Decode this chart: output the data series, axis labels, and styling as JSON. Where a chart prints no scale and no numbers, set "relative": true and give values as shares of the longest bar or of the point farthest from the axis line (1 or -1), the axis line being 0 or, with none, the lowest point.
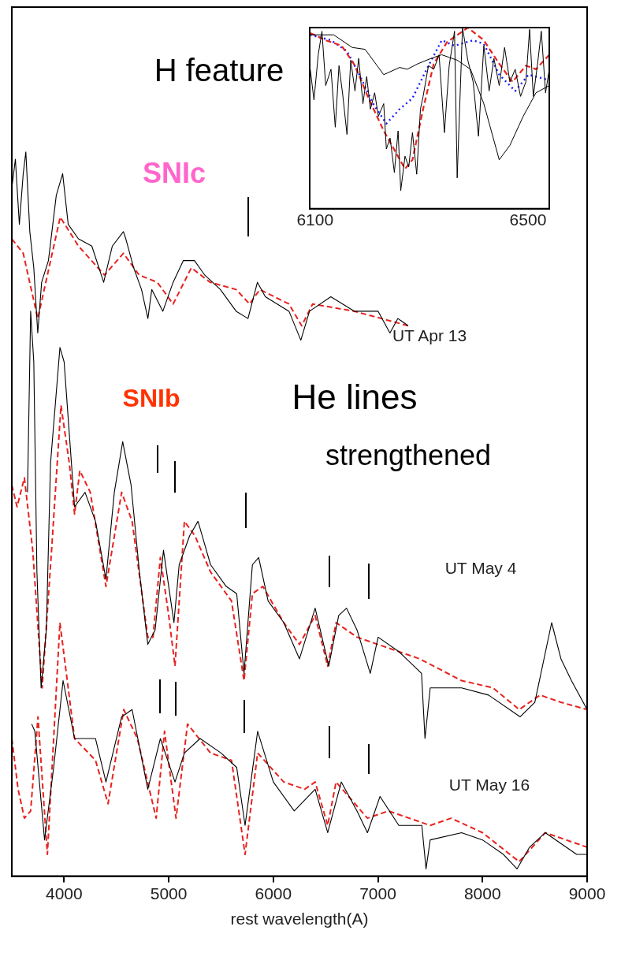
{
  "chart_data": [
    {
      "type": "line",
      "xlabel": "rest wavelength(A)",
      "xlim": [
        3500,
        9000
      ],
      "xticks": [
        4000,
        5000,
        6000,
        7000,
        8000,
        9000
      ],
      "relative": true,
      "series": [
        {
          "color": "#000000",
          "x": [
            3500,
            3534,
            3572,
            3609,
            3634,
            3672,
            3710,
            3748,
            3785,
            3850,
            3925,
            3986,
            4039,
            4137,
            4265,
            4378,
            4461,
            4567,
            4590,
            4665,
            4740,
            4801,
            4838,
            4944,
            5042,
            5140,
            5246,
            5344,
            5494,
            5645,
            5758,
            5848,
            5924,
            6150,
            6263,
            6346,
            6550,
            6776,
            7002,
            7115,
            7191,
            7289
          ],
          "values": [
            0.95,
            0.99,
            0.9,
            0.97,
            1.0,
            0.89,
            0.84,
            0.75,
            0.82,
            0.85,
            0.94,
            0.97,
            0.9,
            0.88,
            0.87,
            0.82,
            0.87,
            0.89,
            0.88,
            0.84,
            0.81,
            0.77,
            0.81,
            0.78,
            0.82,
            0.85,
            0.85,
            0.83,
            0.81,
            0.78,
            0.77,
            0.82,
            0.8,
            0.78,
            0.74,
            0.78,
            0.8,
            0.78,
            0.78,
            0.75,
            0.77,
            0.76
          ],
          "line_style": "solid"
        },
        {
          "color": "#e8231f",
          "x": [
            3500,
            3609,
            3748,
            3963,
            4137,
            4386,
            4567,
            4717,
            4891,
            5042,
            5216,
            5396,
            5645,
            5773,
            5871,
            6150,
            6271,
            6376,
            6776,
            7289
          ],
          "values": [
            0.88,
            0.86,
            0.77,
            0.91,
            0.87,
            0.83,
            0.86,
            0.83,
            0.82,
            0.79,
            0.84,
            0.82,
            0.81,
            0.79,
            0.81,
            0.79,
            0.76,
            0.79,
            0.78,
            0.76
          ],
          "line_style": "dashed"
        },
        {
          "color": "#000000",
          "x": [
            3650,
            3680,
            3710,
            3740,
            3780,
            3830,
            3870,
            3960,
            4000,
            4050,
            4100,
            4200,
            4300,
            4400,
            4480,
            4560,
            4640,
            4720,
            4800,
            4870,
            4950,
            5000,
            5050,
            5100,
            5200,
            5280,
            5400,
            5550,
            5650,
            5720,
            5800,
            5860,
            5950,
            6100,
            6250,
            6400,
            6530,
            6625,
            6700,
            6800,
            6927,
            7002,
            7200,
            7417,
            7450,
            7500,
            7800,
            8058,
            8360,
            8500,
            8661,
            8750,
            8850,
            9000
          ],
          "values": [
            0.53,
            0.78,
            0.71,
            0.42,
            0.26,
            0.34,
            0.57,
            0.73,
            0.71,
            0.61,
            0.51,
            0.53,
            0.49,
            0.41,
            0.53,
            0.6,
            0.54,
            0.42,
            0.32,
            0.34,
            0.45,
            0.4,
            0.35,
            0.43,
            0.47,
            0.49,
            0.43,
            0.4,
            0.39,
            0.28,
            0.43,
            0.44,
            0.38,
            0.35,
            0.3,
            0.37,
            0.29,
            0.36,
            0.37,
            0.34,
            0.28,
            0.33,
            0.31,
            0.28,
            0.19,
            0.26,
            0.26,
            0.25,
            0.22,
            0.24,
            0.35,
            0.3,
            0.27,
            0.23
          ],
          "line_style": "solid"
        },
        {
          "color": "#e8231f",
          "x": [
            3500,
            3550,
            3620,
            3700,
            3790,
            3880,
            3970,
            4050,
            4100,
            4150,
            4250,
            4400,
            4550,
            4650,
            4800,
            4850,
            4920,
            5000,
            5060,
            5150,
            5250,
            5400,
            5600,
            5720,
            5800,
            5900,
            6100,
            6250,
            6400,
            6520,
            6600,
            6800,
            7000,
            7400,
            7800,
            8100,
            8350,
            8550,
            8750,
            9000
          ],
          "values": [
            0.54,
            0.51,
            0.55,
            0.45,
            0.26,
            0.45,
            0.65,
            0.57,
            0.5,
            0.56,
            0.53,
            0.4,
            0.53,
            0.49,
            0.33,
            0.33,
            0.44,
            0.36,
            0.29,
            0.49,
            0.47,
            0.42,
            0.38,
            0.27,
            0.39,
            0.4,
            0.35,
            0.32,
            0.36,
            0.29,
            0.35,
            0.33,
            0.32,
            0.3,
            0.27,
            0.26,
            0.23,
            0.25,
            0.24,
            0.23
          ],
          "line_style": "dashed"
        },
        {
          "color": "#000000",
          "x": [
            3690,
            3720,
            3813,
            3900,
            3990,
            4100,
            4300,
            4400,
            4550,
            4650,
            4800,
            4920,
            5060,
            5150,
            5300,
            5500,
            5650,
            5730,
            5850,
            6000,
            6200,
            6400,
            6520,
            6650,
            6800,
            6900,
            7020,
            7200,
            7420,
            7460,
            7500,
            7800,
            8000,
            8200,
            8330,
            8450,
            8600,
            8900,
            9000
          ],
          "values": [
            0.21,
            0.2,
            0.05,
            0.15,
            0.27,
            0.19,
            0.19,
            0.13,
            0.22,
            0.23,
            0.12,
            0.19,
            0.13,
            0.17,
            0.19,
            0.17,
            0.15,
            0.07,
            0.2,
            0.13,
            0.09,
            0.12,
            0.06,
            0.13,
            0.09,
            0.06,
            0.11,
            0.07,
            0.07,
            0.01,
            0.05,
            0.06,
            0.05,
            0.03,
            0.01,
            0.04,
            0.06,
            0.03,
            0.03
          ],
          "line_style": "solid"
        },
        {
          "color": "#e8231f",
          "x": [
            3500,
            3560,
            3620,
            3680,
            3750,
            3840,
            3960,
            4100,
            4300,
            4420,
            4570,
            4700,
            4880,
            4960,
            5070,
            5180,
            5400,
            5600,
            5730,
            5850,
            6100,
            6300,
            6400,
            6520,
            6600,
            6900,
            7100,
            7500,
            7700,
            8000,
            8350,
            8600,
            9000
          ],
          "values": [
            0.19,
            0.12,
            0.08,
            0.09,
            0.22,
            0.03,
            0.35,
            0.19,
            0.16,
            0.1,
            0.23,
            0.19,
            0.08,
            0.2,
            0.08,
            0.21,
            0.17,
            0.16,
            0.03,
            0.17,
            0.13,
            0.12,
            0.13,
            0.07,
            0.13,
            0.08,
            0.09,
            0.07,
            0.08,
            0.06,
            0.02,
            0.06,
            0.04
          ],
          "line_style": "dashed"
        }
      ],
      "annotations": [
        "H feature",
        "SNIc",
        "UT Apr 13",
        "SNIb",
        "He lines",
        "strengthened",
        "UT May 4",
        "UT May 16"
      ]
    },
    {
      "type": "line",
      "xlim": [
        6090,
        6540
      ],
      "xticks": [
        6100,
        6500
      ],
      "relative": true,
      "series": [
        {
          "color": "#000000",
          "x": [
            6091,
            6135,
            6170,
            6194,
            6229,
            6259,
            6273,
            6293,
            6318,
            6338,
            6367,
            6392,
            6417,
            6446,
            6466,
            6491,
            6515,
            6540
          ],
          "values": [
            0.96,
            0.96,
            0.89,
            0.88,
            0.74,
            0.78,
            0.77,
            0.8,
            0.83,
            0.85,
            0.82,
            0.77,
            0.58,
            0.27,
            0.35,
            0.51,
            0.64,
            0.68
          ],
          "line_style": "solid"
        },
        {
          "color": "#000000",
          "x": [
            6091,
            6098,
            6106,
            6113,
            6120,
            6130,
            6138,
            6145,
            6152,
            6160,
            6167,
            6175,
            6182,
            6190,
            6197,
            6204,
            6212,
            6219,
            6229,
            6234,
            6241,
            6249,
            6256,
            6261,
            6269,
            6276,
            6283,
            6291,
            6298,
            6303,
            6313,
            6323,
            6333,
            6343,
            6352,
            6362,
            6367,
            6377,
            6387,
            6397,
            6407,
            6417,
            6427,
            6436,
            6446,
            6456,
            6466,
            6476,
            6486,
            6496,
            6503,
            6510,
            6518,
            6525,
            6533,
            6540
          ],
          "values": [
            0.77,
            0.6,
            0.85,
            0.98,
            0.68,
            0.77,
            0.45,
            0.79,
            0.63,
            0.41,
            0.82,
            0.65,
            0.83,
            0.58,
            0.73,
            0.55,
            0.64,
            0.51,
            0.58,
            0.33,
            0.39,
            0.2,
            0.43,
            0.1,
            0.29,
            0.23,
            0.42,
            0.19,
            0.55,
            0.62,
            0.79,
            0.77,
            0.85,
            0.42,
            0.79,
            0.98,
            0.17,
            1.0,
            0.82,
            0.7,
            0.4,
            0.9,
            0.65,
            0.83,
            0.68,
            0.89,
            0.7,
            0.77,
            0.62,
            0.7,
            0.99,
            0.62,
            0.8,
            0.98,
            0.64,
            0.77
          ],
          "line_style": "solid"
        },
        {
          "color": "#e8231f",
          "x": [
            6091,
            6120,
            6150,
            6175,
            6199,
            6229,
            6269,
            6283,
            6303,
            6323,
            6348,
            6387,
            6417,
            6446,
            6471,
            6496,
            6515,
            6540
          ],
          "values": [
            0.97,
            0.93,
            0.9,
            0.79,
            0.62,
            0.43,
            0.22,
            0.27,
            0.55,
            0.8,
            0.92,
            1.0,
            0.93,
            0.8,
            0.7,
            0.79,
            0.77,
            0.85
          ],
          "line_style": "dashed"
        },
        {
          "color": "#1a1aff",
          "x": [
            6091,
            6130,
            6160,
            6185,
            6209,
            6234,
            6259,
            6283,
            6308,
            6338,
            6362,
            6397,
            6417,
            6446,
            6476,
            6501,
            6540
          ],
          "values": [
            0.96,
            0.93,
            0.87,
            0.73,
            0.58,
            0.47,
            0.55,
            0.61,
            0.76,
            0.93,
            0.9,
            0.93,
            0.91,
            0.74,
            0.65,
            0.74,
            0.71
          ],
          "line_style": "dotted"
        }
      ]
    }
  ]
}
